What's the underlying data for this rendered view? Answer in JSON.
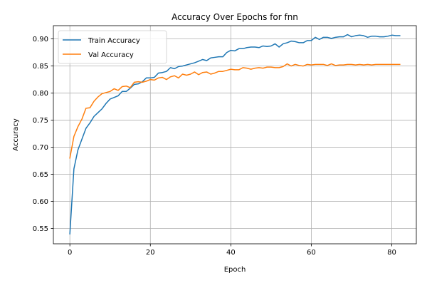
{
  "chart_data": {
    "type": "line",
    "title": "Accuracy Over Epochs for fnn",
    "xlabel": "Epoch",
    "ylabel": "Accuracy",
    "xlim": [
      -4.1,
      86.1
    ],
    "ylim": [
      0.5217,
      0.9245
    ],
    "x_ticks": [
      0,
      20,
      40,
      60,
      80
    ],
    "y_ticks": [
      0.55,
      0.6,
      0.65,
      0.7,
      0.75,
      0.8,
      0.85,
      0.9
    ],
    "y_tick_labels": [
      "0.55",
      "0.60",
      "0.65",
      "0.70",
      "0.75",
      "0.80",
      "0.85",
      "0.90"
    ],
    "grid": true,
    "legend_position": "upper-left",
    "colors": {
      "train": "#1f77b4",
      "val": "#ff7f0e"
    },
    "series": [
      {
        "name": "Train Accuracy",
        "color": "#1f77b4",
        "values": [
          0.54,
          0.66,
          0.695,
          0.715,
          0.735,
          0.745,
          0.757,
          0.764,
          0.771,
          0.781,
          0.789,
          0.792,
          0.795,
          0.803,
          0.803,
          0.809,
          0.816,
          0.817,
          0.821,
          0.828,
          0.828,
          0.829,
          0.837,
          0.838,
          0.84,
          0.847,
          0.845,
          0.849,
          0.85,
          0.852,
          0.854,
          0.856,
          0.859,
          0.862,
          0.86,
          0.865,
          0.866,
          0.867,
          0.867,
          0.875,
          0.879,
          0.878,
          0.882,
          0.882,
          0.884,
          0.885,
          0.885,
          0.884,
          0.887,
          0.886,
          0.887,
          0.891,
          0.885,
          0.891,
          0.893,
          0.896,
          0.895,
          0.893,
          0.893,
          0.897,
          0.897,
          0.903,
          0.899,
          0.903,
          0.903,
          0.901,
          0.903,
          0.904,
          0.904,
          0.908,
          0.904,
          0.906,
          0.907,
          0.906,
          0.903,
          0.905,
          0.905,
          0.904,
          0.904,
          0.905,
          0.907,
          0.906,
          0.906
        ]
      },
      {
        "name": "Val Accuracy",
        "color": "#ff7f0e",
        "values": [
          0.68,
          0.72,
          0.738,
          0.752,
          0.772,
          0.773,
          0.785,
          0.793,
          0.799,
          0.801,
          0.803,
          0.808,
          0.805,
          0.812,
          0.813,
          0.81,
          0.82,
          0.821,
          0.82,
          0.822,
          0.825,
          0.824,
          0.828,
          0.829,
          0.825,
          0.83,
          0.832,
          0.828,
          0.835,
          0.833,
          0.835,
          0.839,
          0.834,
          0.838,
          0.839,
          0.835,
          0.837,
          0.84,
          0.84,
          0.842,
          0.844,
          0.843,
          0.843,
          0.847,
          0.846,
          0.844,
          0.846,
          0.847,
          0.846,
          0.848,
          0.848,
          0.847,
          0.847,
          0.849,
          0.854,
          0.85,
          0.853,
          0.851,
          0.85,
          0.853,
          0.852,
          0.853,
          0.853,
          0.853,
          0.851,
          0.854,
          0.851,
          0.852,
          0.852,
          0.853,
          0.853,
          0.852,
          0.853,
          0.852,
          0.853,
          0.852,
          0.853,
          0.853,
          0.853,
          0.853,
          0.853,
          0.853,
          0.853
        ]
      }
    ]
  }
}
